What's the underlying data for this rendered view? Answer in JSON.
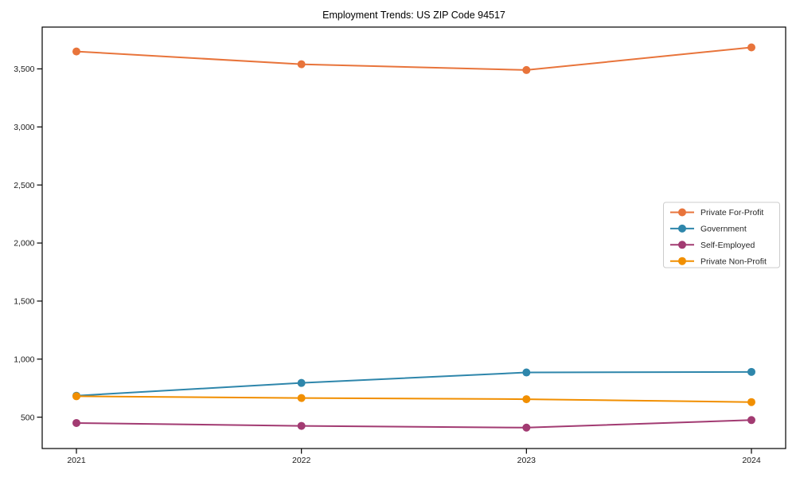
{
  "figure": {
    "title": "Employment Trends: US ZIP Code 94517"
  },
  "chart_data": {
    "type": "line",
    "title": "Employment Trends: US ZIP Code 94517",
    "categories": [
      "2021",
      "2022",
      "2023",
      "2024"
    ],
    "series": [
      {
        "name": "Private For-Profit",
        "color": "#e8743b",
        "values": [
          3650,
          3540,
          3490,
          3685
        ]
      },
      {
        "name": "Government",
        "color": "#2e86ab",
        "values": [
          685,
          795,
          885,
          890
        ]
      },
      {
        "name": "Self-Employed",
        "color": "#a23b72",
        "values": [
          450,
          425,
          410,
          475
        ]
      },
      {
        "name": "Private Non-Profit",
        "color": "#f18f01",
        "values": [
          680,
          665,
          655,
          630
        ]
      }
    ],
    "xlabel": "",
    "ylabel": "",
    "ylim": [
      230,
      3860
    ],
    "yticks": [
      500,
      1000,
      1500,
      2000,
      2500,
      3000,
      3500
    ],
    "grid": false,
    "legend_position": "center right",
    "marker": "circle",
    "styles": {
      "axis_color": "#000000",
      "tick_label_color": "#1a1a1a",
      "title_color": "#000000",
      "legend_border_color": "#cccccc",
      "legend_background": "#ffffff",
      "legend_text_color": "#262626"
    }
  }
}
